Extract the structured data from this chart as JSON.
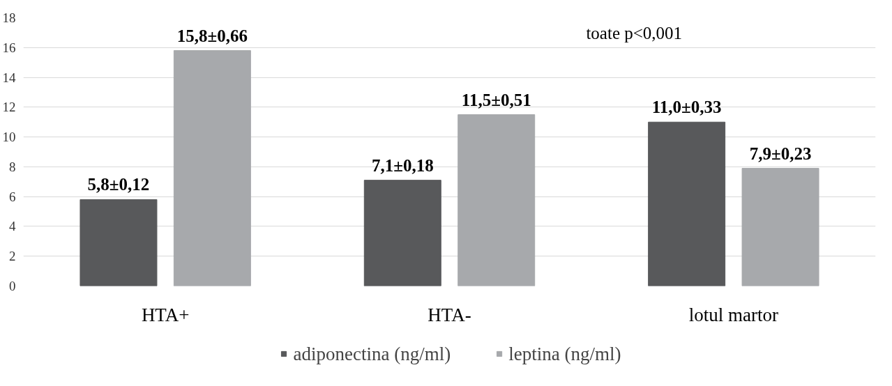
{
  "chart_data": {
    "type": "bar",
    "categories": [
      "HTA+",
      "HTA-",
      "lotul martor"
    ],
    "series": [
      {
        "name": "adiponectina (ng/ml)",
        "color": "#58595b",
        "values": [
          5.8,
          7.1,
          11.0
        ],
        "value_labels": [
          "5,8±0,12",
          "7,1±0,18",
          "11,0±0,33"
        ]
      },
      {
        "name": "leptina (ng/ml)",
        "color": "#a7a9ac",
        "values": [
          15.8,
          11.5,
          7.9
        ],
        "value_labels": [
          "15,8±0,66",
          "11,5±0,51",
          "7,9±0,23"
        ]
      }
    ],
    "ylim": [
      0,
      18
    ],
    "yticks": [
      0,
      2,
      4,
      6,
      8,
      10,
      12,
      14,
      16,
      18
    ],
    "grid": "y",
    "legend": "bottom",
    "annotations": [
      "toate p<0,001"
    ]
  }
}
